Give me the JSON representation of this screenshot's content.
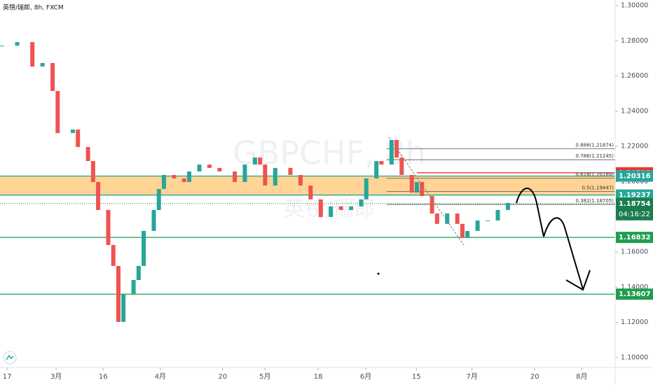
{
  "chart_data": {
    "type": "candlestick",
    "title": "英镑/瑞郎, 8h, FXCM",
    "watermark": "GBPCHF, 8h",
    "watermark_sub": "英镑/瑞郎",
    "x": [
      0,
      3,
      6,
      8,
      10,
      11,
      14,
      15,
      17,
      18,
      19,
      21,
      22,
      23,
      24,
      26,
      27,
      28,
      30,
      31,
      32,
      34,
      36,
      37,
      39,
      41,
      43,
      46,
      48,
      50,
      51,
      52,
      54,
      57,
      59,
      61,
      63,
      65,
      67,
      69,
      71,
      72,
      74,
      75,
      77,
      78,
      79,
      81,
      82,
      83,
      85,
      86,
      88,
      90,
      91,
      92,
      94,
      96,
      98,
      100
    ],
    "series": [
      {
        "name": "GBPCHF",
        "up_color": "#26a69a",
        "down_color": "#ef5350",
        "values": [
          1.2773,
          1.2793,
          1.2654,
          1.2674,
          1.2515,
          1.2276,
          1.2296,
          1.2197,
          1.2117,
          1.1998,
          1.1839,
          1.164,
          1.1521,
          1.1203,
          1.1362,
          1.1441,
          1.1521,
          1.172,
          1.1839,
          1.1958,
          1.2038,
          1.2018,
          1.1998,
          1.2058,
          1.2097,
          1.2078,
          1.2058,
          1.1998,
          1.2097,
          1.2137,
          1.2097,
          1.1978,
          1.2078,
          1.2038,
          1.1978,
          1.1899,
          1.1799,
          1.1859,
          1.1839,
          1.1859,
          1.1899,
          1.2018,
          1.2117,
          1.2097,
          1.2237,
          1.2137,
          1.2038,
          1.1938,
          1.1998,
          1.1918,
          1.1819,
          1.176,
          1.1819,
          1.176,
          1.168,
          1.172,
          1.1779,
          1.1779,
          1.1839,
          1.1879
        ]
      }
    ],
    "xlim": [
      -0.4,
      121.2
    ],
    "xticks": [
      {
        "value": 1.0,
        "label": "17"
      },
      {
        "value": 10.7,
        "label": "3月"
      },
      {
        "value": 20.0,
        "label": "16"
      },
      {
        "value": 31.3,
        "label": "4月"
      },
      {
        "value": 43.6,
        "label": "20"
      },
      {
        "value": 52.0,
        "label": "5月"
      },
      {
        "value": 62.5,
        "label": "18"
      },
      {
        "value": 71.9,
        "label": "6月"
      },
      {
        "value": 81.9,
        "label": "15"
      },
      {
        "value": 92.9,
        "label": "7月"
      },
      {
        "value": 105.3,
        "label": "20"
      },
      {
        "value": 114.6,
        "label": "8月"
      }
    ],
    "ylim": [
      1.0944,
      1.3032
    ],
    "yticks": [
      {
        "value": 1.1,
        "label": "1.10000"
      },
      {
        "value": 1.12,
        "label": "1.12000"
      },
      {
        "value": 1.14,
        "label": "1.14000"
      },
      {
        "value": 1.16,
        "label": "1.16000"
      },
      {
        "value": 1.18,
        "label": "1.18000"
      },
      {
        "value": 1.2,
        "label": "1.20000"
      },
      {
        "value": 1.22,
        "label": "1.22000"
      },
      {
        "value": 1.24,
        "label": "1.24000"
      },
      {
        "value": 1.26,
        "label": "1.26000"
      },
      {
        "value": 1.28,
        "label": "1.28000"
      },
      {
        "value": 1.3,
        "label": "1.30000"
      }
    ],
    "zone": {
      "top": 1.20316,
      "bottom": 1.19237,
      "color": "#ffb74d"
    },
    "levels": [
      {
        "value": 1.20503,
        "color": "#e53935",
        "x_start": 82
      },
      {
        "value": 1.20316,
        "color": "#26a69a"
      },
      {
        "value": 1.19237,
        "color": "#26a69a"
      },
      {
        "value": 1.16832,
        "color": "#1e9e50"
      },
      {
        "value": 1.13607,
        "color": "#1e9e50"
      }
    ],
    "current_price": {
      "value": 1.18754,
      "color": "#1b7d4f",
      "countdown": "04:16:22"
    },
    "fib_levels": [
      {
        "value": 1.21874,
        "label": "0.886(1.21874)"
      },
      {
        "value": 1.21245,
        "label": "0.786(1.21245)"
      },
      {
        "value": 1.20189,
        "label": "0.618(1.20189)"
      },
      {
        "value": 1.19447,
        "label": "0.5(1.19447)"
      },
      {
        "value": 1.18705,
        "label": "0.382(1.18705)"
      }
    ],
    "fib_x_start": 76
  }
}
